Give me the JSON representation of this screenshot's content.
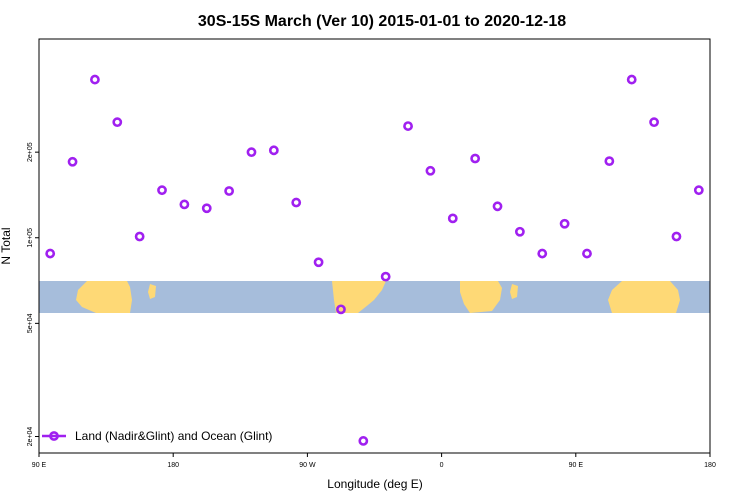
{
  "chart_data": {
    "type": "scatter",
    "title": "30S-15S March (Ver 10)   2015-01-01 to 2020-12-18",
    "xlabel": "Longitude (deg E)",
    "ylabel": "N Total",
    "x_scale": "longitude-index",
    "x_range": [
      0,
      30
    ],
    "x_ticks": [
      {
        "pos": 0,
        "label": "90 E"
      },
      {
        "pos": 6,
        "label": "180"
      },
      {
        "pos": 12,
        "label": "90 W"
      },
      {
        "pos": 18,
        "label": "0"
      },
      {
        "pos": 24,
        "label": "90 E"
      },
      {
        "pos": 30,
        "label": "180"
      }
    ],
    "y_scale": "log10",
    "ylim": [
      17500,
      500000
    ],
    "y_ticks": [
      {
        "value": 20000,
        "label": "2e+04"
      },
      {
        "value": 50000,
        "label": "5e+04"
      },
      {
        "value": 100000,
        "label": "1e+05"
      },
      {
        "value": 200000,
        "label": "2e+05"
      }
    ],
    "map_band": {
      "lat_range": [
        -30,
        -15
      ],
      "ocean_color": "#a6bddb",
      "land_color": "#fed976"
    },
    "series": [
      {
        "name": "Land (Nadir&Glint) and Ocean (Glint)",
        "color": "#a020f0",
        "marker": "open-circle",
        "x": [
          0.5,
          1.5,
          2.5,
          3.5,
          4.5,
          5.5,
          6.5,
          7.5,
          8.5,
          9.5,
          10.5,
          11.5,
          12.5,
          13.5,
          14.5,
          15.5,
          16.5,
          17.5,
          18.5,
          19.5,
          20.5,
          21.5,
          22.5,
          23.5,
          24.5,
          25.5,
          26.5,
          27.5,
          28.5,
          29.5
        ],
        "y": [
          88000,
          185000,
          360000,
          255000,
          101000,
          147000,
          131000,
          127000,
          146000,
          200000,
          203000,
          133000,
          82000,
          56000,
          19300,
          73000,
          247000,
          172000,
          117000,
          190000,
          129000,
          105000,
          88000,
          112000,
          88000,
          186000,
          360000,
          255000,
          101000,
          147000
        ]
      }
    ],
    "legend": {
      "location": "bottom-left"
    }
  }
}
